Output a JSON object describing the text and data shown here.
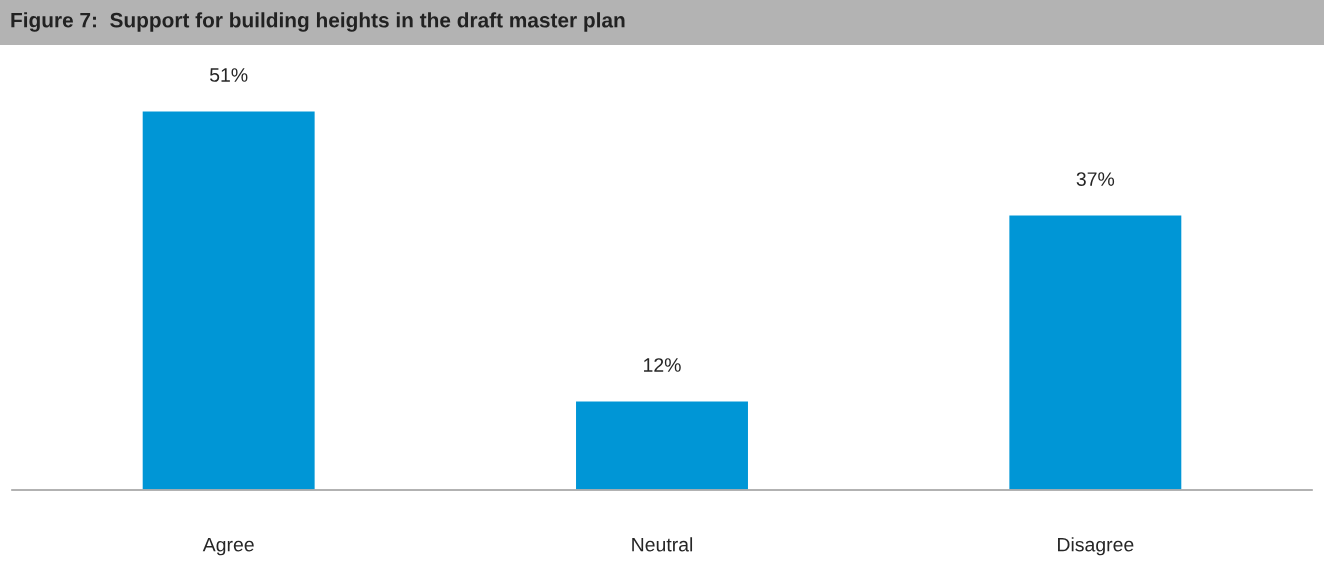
{
  "chart_data": {
    "type": "bar",
    "title": "Figure 7:  Support for building heights in the draft master plan",
    "categories": [
      "Agree",
      "Neutral",
      "Disagree"
    ],
    "values": [
      51,
      12,
      37
    ],
    "value_labels": [
      "51%",
      "12%",
      "37%"
    ],
    "color": "#0096d6",
    "grid": false
  }
}
